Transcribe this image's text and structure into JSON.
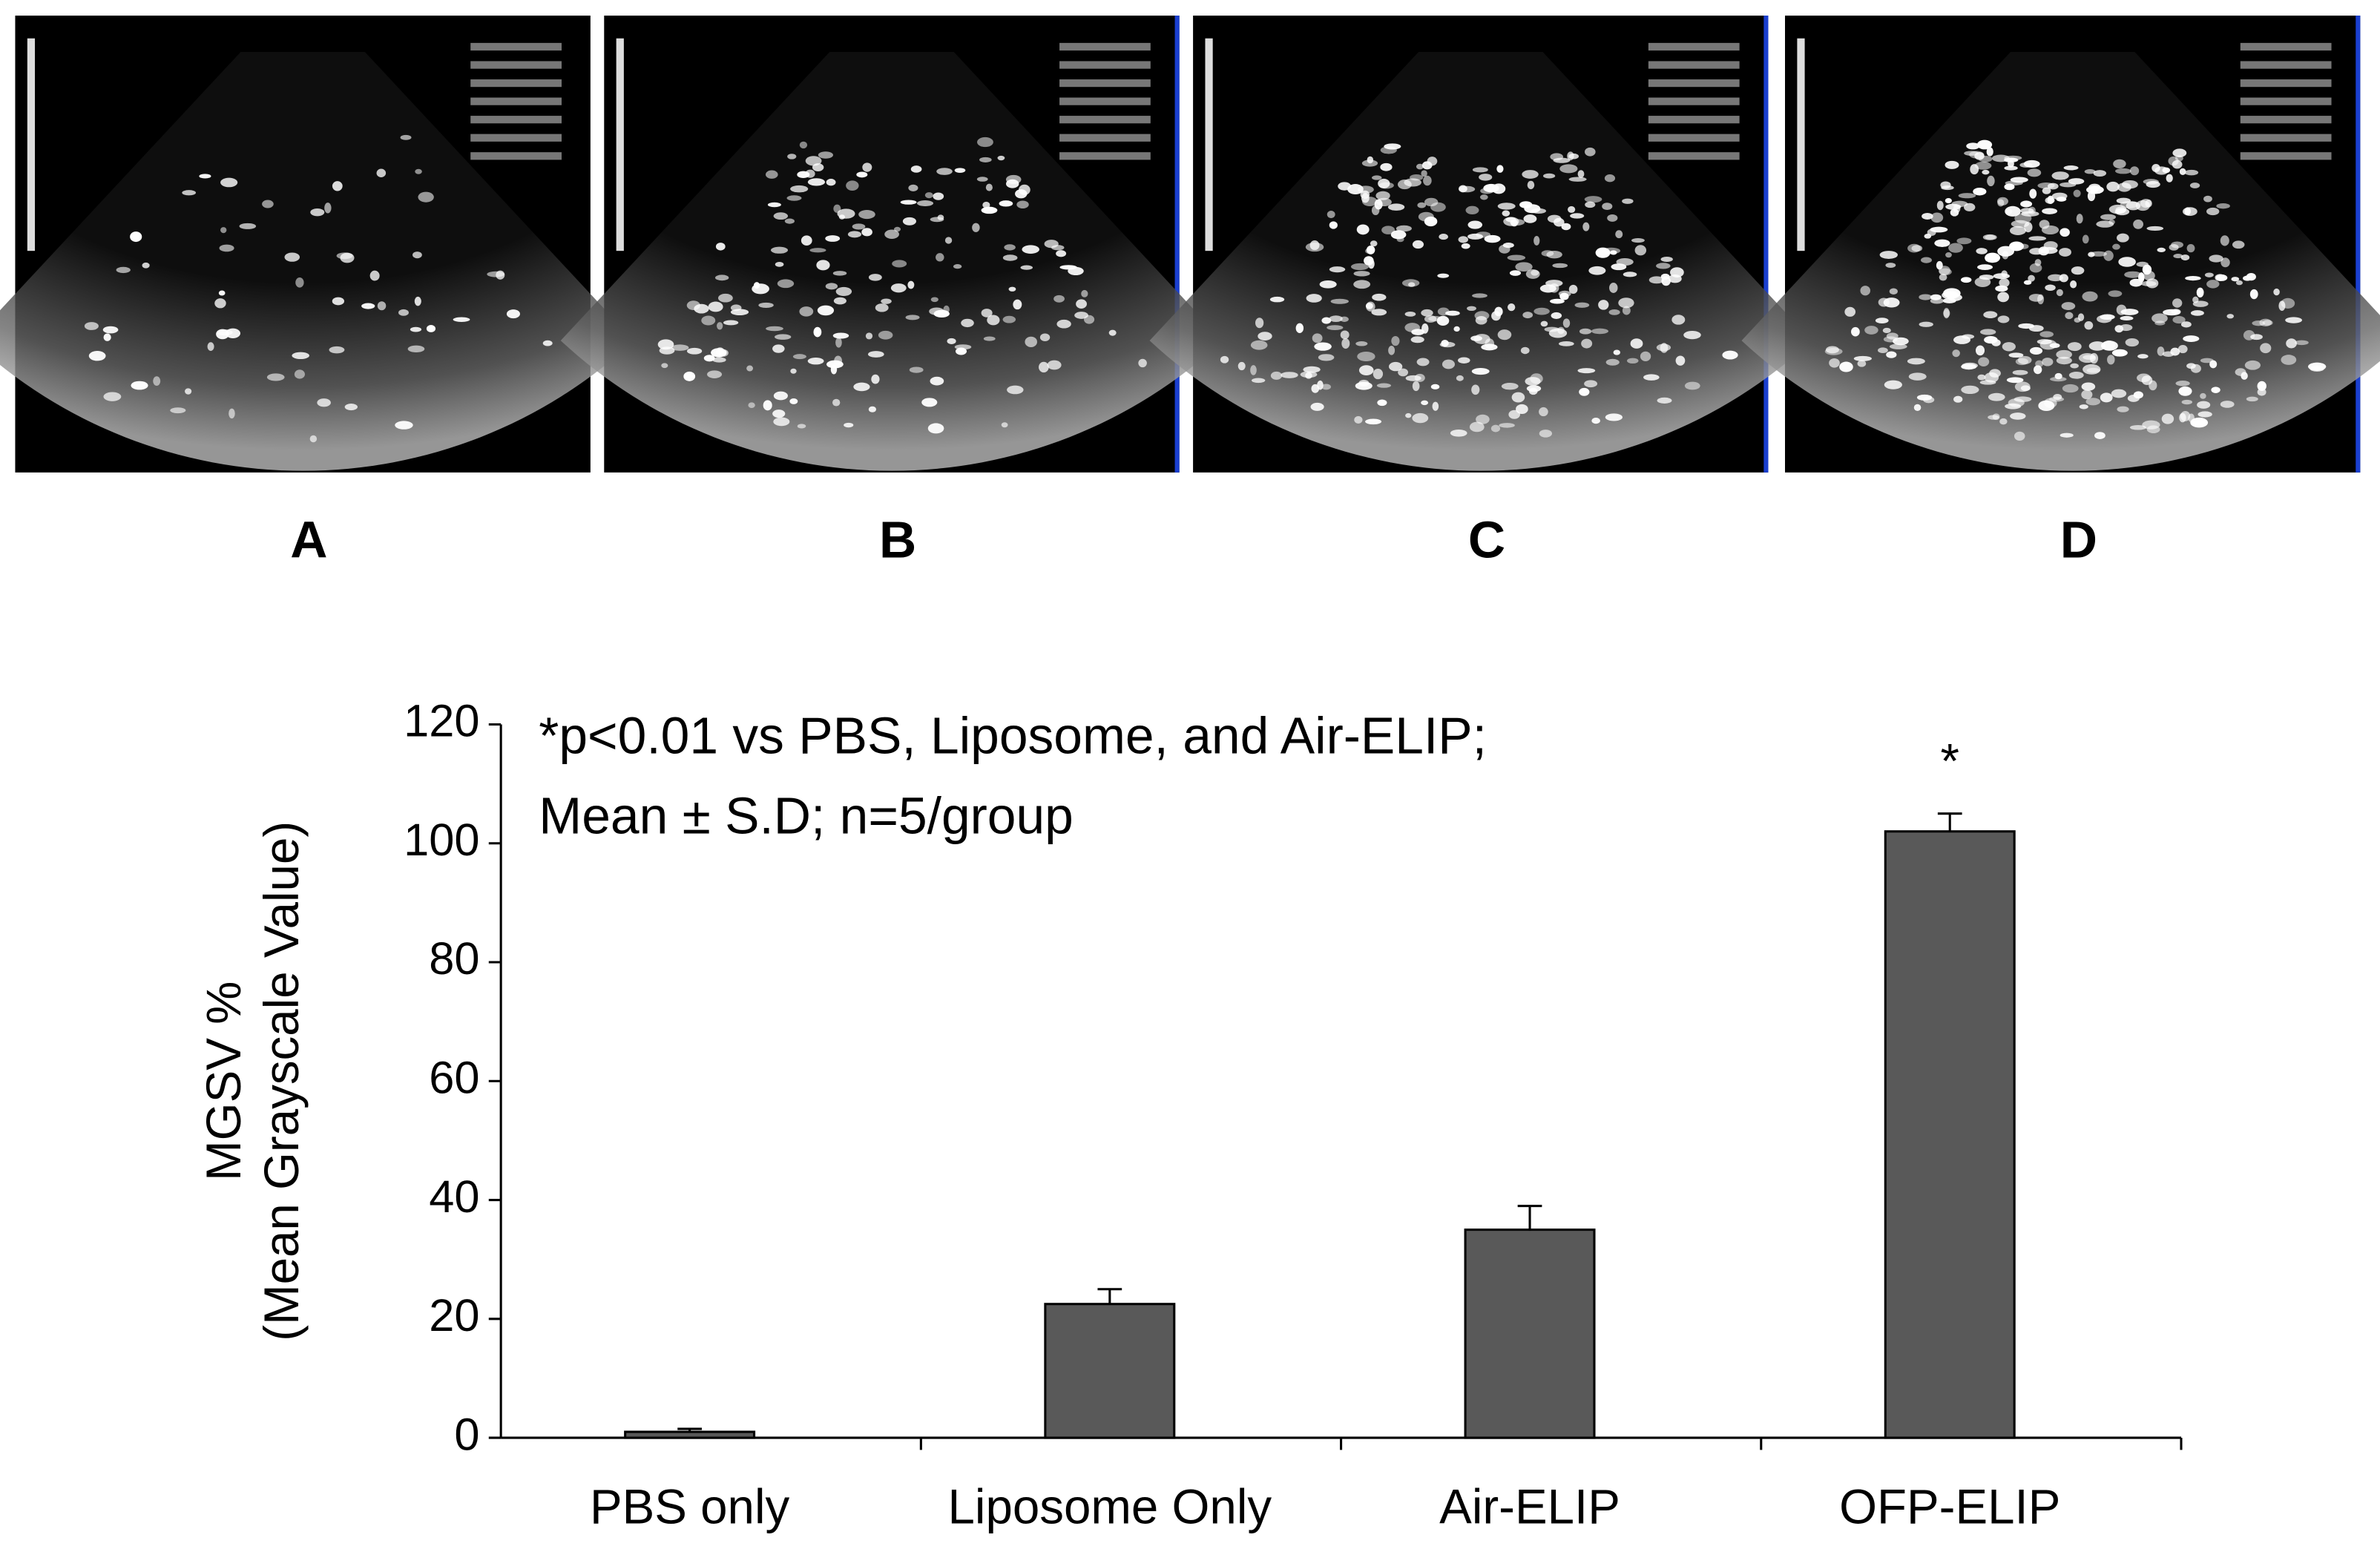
{
  "panels": [
    "A",
    "B",
    "C",
    "D"
  ],
  "chart_data": {
    "type": "bar",
    "annotation": [
      "*p<0.01 vs PBS, Liposome, and Air-ELIP;",
      "Mean ± S.D; n=5/group"
    ],
    "ylabel": [
      "MGSV %",
      "(Mean Grayscale Value)"
    ],
    "categories": [
      "PBS only",
      "Liposome Only",
      "Air-ELIP",
      "OFP-ELIP"
    ],
    "values": [
      1,
      22.5,
      35,
      102
    ],
    "errors": [
      0.5,
      2.5,
      4,
      3
    ],
    "value_marks": [
      null,
      null,
      null,
      "*"
    ],
    "color": "#595959",
    "ylim": [
      0,
      120
    ],
    "yticks": [
      0,
      20,
      40,
      60,
      80,
      100,
      120
    ]
  }
}
